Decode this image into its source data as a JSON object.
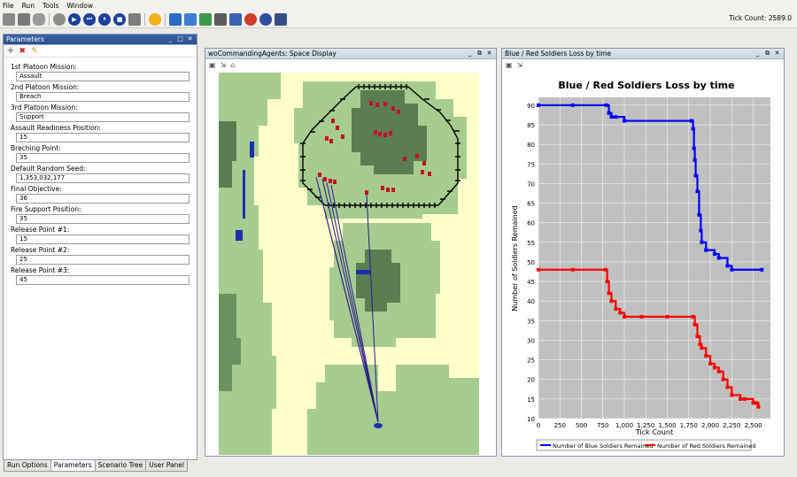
{
  "menu": [
    "File",
    "Run",
    "Tools",
    "Window"
  ],
  "toolbar_icons": [
    "folder-icon",
    "save-icon",
    "database-icon",
    "stop-circle-icon",
    "play-icon",
    "step-icon",
    "pause-icon",
    "stop-icon",
    "reset-icon",
    "lightbulb-icon",
    "globe-icon",
    "camera-icon",
    "movie-icon",
    "snapshot-icon",
    "grid-icon",
    "chart-icon",
    "record-icon",
    "export-icon"
  ],
  "tick_count": "Tick Count: 2589.0",
  "parameters_panel": {
    "title": "Parameters",
    "fields": [
      {
        "label": "1st Platoon Mission:",
        "value": "Assault"
      },
      {
        "label": "2nd Platoon Mission:",
        "value": "Breach"
      },
      {
        "label": "3rd Platoon Mission:",
        "value": "Support"
      },
      {
        "label": "Assault Readiness Position:",
        "value": "15"
      },
      {
        "label": "Breching Point:",
        "value": "35"
      },
      {
        "label": "Default Random Seed:",
        "value": "1,353,032,177"
      },
      {
        "label": "Final Objective:",
        "value": "36"
      },
      {
        "label": "Fire Support Position:",
        "value": "35"
      },
      {
        "label": "Release Point #1:",
        "value": "15"
      },
      {
        "label": "Release Point #2:",
        "value": "25"
      },
      {
        "label": "Release Point #3:",
        "value": "45"
      }
    ],
    "tabs": [
      "Run Options",
      "Parameters",
      "Scenario Tree",
      "User Panel"
    ],
    "active_tab": "Parameters"
  },
  "space_panel": {
    "title": "woCommandingAgents: Space Display"
  },
  "chart_panel": {
    "title": "Blue / Red Soldiers Loss by time"
  },
  "chart_data": {
    "type": "line",
    "title": "Blue / Red Soldiers Loss by time",
    "xlabel": "Tick Count",
    "ylabel": "Number of Soldiers Remained",
    "xlim": [
      0,
      2700
    ],
    "ylim": [
      10,
      92
    ],
    "xticks": [
      "0",
      "250",
      "500",
      "750",
      "1,000",
      "1,250",
      "1,500",
      "1,750",
      "2,000",
      "2,250",
      "2,500"
    ],
    "xtick_values": [
      0,
      250,
      500,
      750,
      1000,
      1250,
      1500,
      1750,
      2000,
      2250,
      2500
    ],
    "yticks": [
      "10",
      "15",
      "20",
      "25",
      "30",
      "35",
      "40",
      "45",
      "50",
      "55",
      "60",
      "65",
      "70",
      "75",
      "80",
      "85",
      "90"
    ],
    "grid": true,
    "legend_position": "bottom",
    "colors": {
      "blue": "#0000ff",
      "red": "#ff0000"
    },
    "series": [
      {
        "name": "Number of Blue Soldiers Remained",
        "color": "#0000ff",
        "x": [
          0,
          400,
          790,
          820,
          850,
          900,
          1000,
          1780,
          1800,
          1810,
          1820,
          1830,
          1850,
          1870,
          1890,
          1900,
          1950,
          2050,
          2100,
          2200,
          2250,
          2600
        ],
        "y": [
          90,
          90,
          90,
          88,
          87,
          87,
          86,
          86,
          84,
          79,
          76,
          72,
          68,
          62,
          58,
          55,
          53,
          52,
          51,
          49,
          48,
          48
        ]
      },
      {
        "name": "Number of Red Soldiers Remained",
        "color": "#ff0000",
        "x": [
          0,
          400,
          780,
          800,
          820,
          850,
          900,
          950,
          1000,
          1200,
          1500,
          1800,
          1820,
          1850,
          1880,
          1900,
          1950,
          2000,
          2050,
          2100,
          2150,
          2200,
          2250,
          2350,
          2400,
          2500,
          2530,
          2560
        ],
        "y": [
          48,
          48,
          48,
          45,
          42,
          40,
          38,
          37,
          36,
          36,
          36,
          36,
          34,
          31,
          29,
          28,
          26,
          24,
          23,
          22,
          20,
          18,
          16,
          15,
          15,
          14,
          14,
          13
        ]
      }
    ]
  }
}
